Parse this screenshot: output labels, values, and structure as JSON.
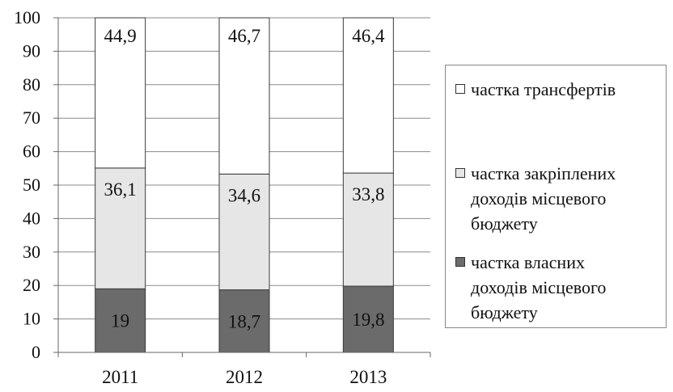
{
  "chart_data": {
    "type": "bar",
    "stacked": true,
    "categories": [
      "2011",
      "2012",
      "2013"
    ],
    "series": [
      {
        "name": "частка власних доходів місцевого бюджету",
        "values": [
          19,
          18.7,
          19.8
        ],
        "labels": [
          "19",
          "18,7",
          "19,8"
        ],
        "color": "#6b6b6b"
      },
      {
        "name": "частка закріплених доходів місцевого бюджету",
        "values": [
          36.1,
          34.6,
          33.8
        ],
        "labels": [
          "36,1",
          "34,6",
          "33,8"
        ],
        "color": "#e6e6e6"
      },
      {
        "name": "частка трансфертів",
        "values": [
          44.9,
          46.7,
          46.4
        ],
        "labels": [
          "44,9",
          "46,7",
          "46,4"
        ],
        "color": "#ffffff"
      }
    ],
    "yticks": [
      "0",
      "10",
      "20",
      "30",
      "40",
      "50",
      "60",
      "70",
      "80",
      "90",
      "100"
    ],
    "ylim": [
      0,
      100
    ],
    "grid": true,
    "legend_position": "right"
  },
  "legend": {
    "items": [
      {
        "label": "частка трансфертів",
        "color": "#ffffff"
      },
      {
        "label": "частка закріплених доходів місцевого бюджету",
        "color": "#e6e6e6"
      },
      {
        "label": "частка власних доходів місцевого бюджету",
        "color": "#6b6b6b"
      }
    ]
  }
}
